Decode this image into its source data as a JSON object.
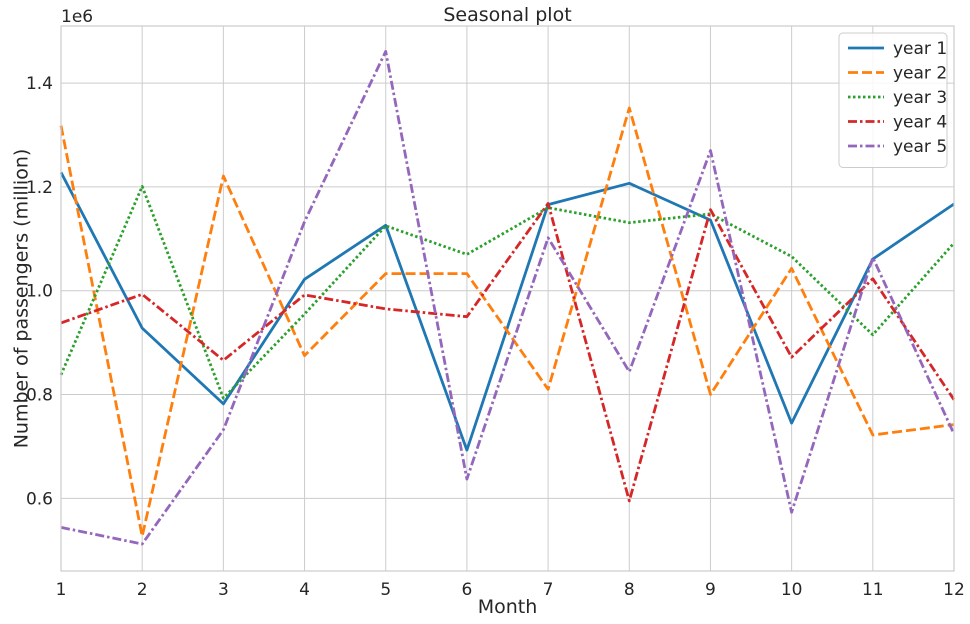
{
  "chart_data": {
    "type": "line",
    "title": "Seasonal plot",
    "xlabel": "Month",
    "ylabel": "Number of passengers (million)",
    "y_offset_label": "1e6",
    "x": [
      1,
      2,
      3,
      4,
      5,
      6,
      7,
      8,
      9,
      10,
      11,
      12
    ],
    "xlim": [
      1,
      12
    ],
    "ylim": [
      460000,
      1510000
    ],
    "x_ticks": [
      1,
      2,
      3,
      4,
      5,
      6,
      7,
      8,
      9,
      10,
      11,
      12
    ],
    "y_ticks": [
      600000,
      800000,
      1000000,
      1200000,
      1400000
    ],
    "y_tick_labels": [
      "0.6",
      "0.8",
      "1.0",
      "1.2",
      "1.4"
    ],
    "grid": true,
    "legend_position": "top-right",
    "series": [
      {
        "name": "year 1",
        "color": "#1f77b4",
        "dash": "solid",
        "values": [
          1228000,
          928000,
          782000,
          1022000,
          1126000,
          693000,
          1166000,
          1207000,
          1136000,
          745000,
          1061000,
          1167000
        ]
      },
      {
        "name": "year 2",
        "color": "#ff7f0e",
        "dash": "dashed",
        "values": [
          1318000,
          527000,
          1221000,
          875000,
          1033000,
          1033000,
          810000,
          1352000,
          800000,
          1043000,
          722000,
          742000
        ]
      },
      {
        "name": "year 3",
        "color": "#2ca02c",
        "dash": "dotted",
        "values": [
          838000,
          1201000,
          793000,
          955000,
          1125000,
          1070000,
          1160000,
          1131000,
          1148000,
          1066000,
          915000,
          1092000
        ]
      },
      {
        "name": "year 4",
        "color": "#d62728",
        "dash": "dashdot",
        "values": [
          938000,
          993000,
          866000,
          992000,
          965000,
          950000,
          1168000,
          595000,
          1156000,
          872000,
          1023000,
          790000
        ]
      },
      {
        "name": "year 5",
        "color": "#9467bd",
        "dash": "dashdot",
        "values": [
          544000,
          512000,
          732000,
          1133000,
          1461000,
          637000,
          1102000,
          844000,
          1270000,
          573000,
          1064000,
          724000
        ]
      }
    ]
  }
}
